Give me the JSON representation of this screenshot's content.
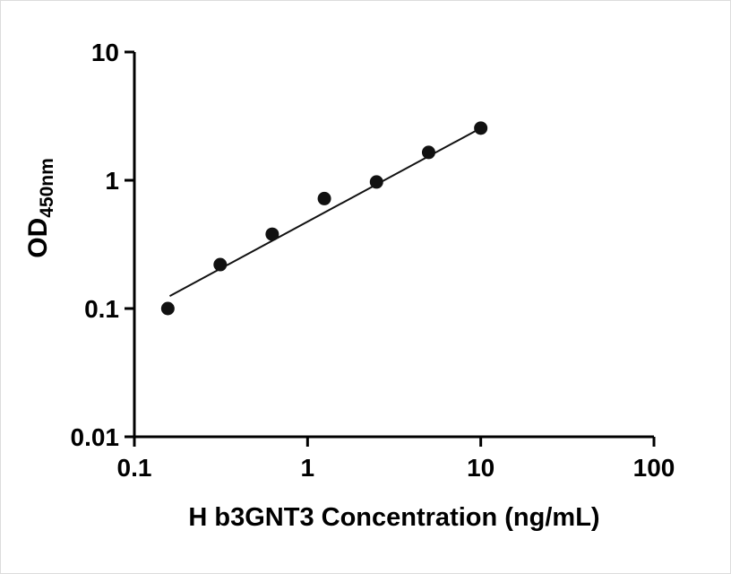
{
  "figure": {
    "background": "#ffffff"
  },
  "chart_data": {
    "type": "scatter",
    "title": "",
    "xlabel": "H b3GNT3 Concentration (ng/mL)",
    "ylabel_main": "OD",
    "ylabel_sub": "450nm",
    "x_scale": "log",
    "y_scale": "log",
    "xlim": [
      0.1,
      100
    ],
    "ylim": [
      0.01,
      10
    ],
    "grid": false,
    "legend": false,
    "axis_color": "#000000",
    "marker_color": "#111111",
    "line_color": "#111111",
    "x_ticks": [
      {
        "value": 0.1,
        "label": "0.1"
      },
      {
        "value": 1,
        "label": "1"
      },
      {
        "value": 10,
        "label": "10"
      },
      {
        "value": 100,
        "label": "100"
      }
    ],
    "y_ticks": [
      {
        "value": 10,
        "label": "10"
      },
      {
        "value": 1,
        "label": "1"
      },
      {
        "value": 0.1,
        "label": "0.1"
      },
      {
        "value": 0.01,
        "label": "0.01"
      }
    ],
    "points": [
      {
        "x": 0.156,
        "y": 0.1
      },
      {
        "x": 0.313,
        "y": 0.22
      },
      {
        "x": 0.625,
        "y": 0.38
      },
      {
        "x": 1.25,
        "y": 0.72
      },
      {
        "x": 2.5,
        "y": 0.97
      },
      {
        "x": 5.0,
        "y": 1.65
      },
      {
        "x": 10.0,
        "y": 2.55
      }
    ],
    "trendline": {
      "x1": 0.16,
      "y1": 0.125,
      "x2": 10.0,
      "y2": 2.55
    }
  }
}
